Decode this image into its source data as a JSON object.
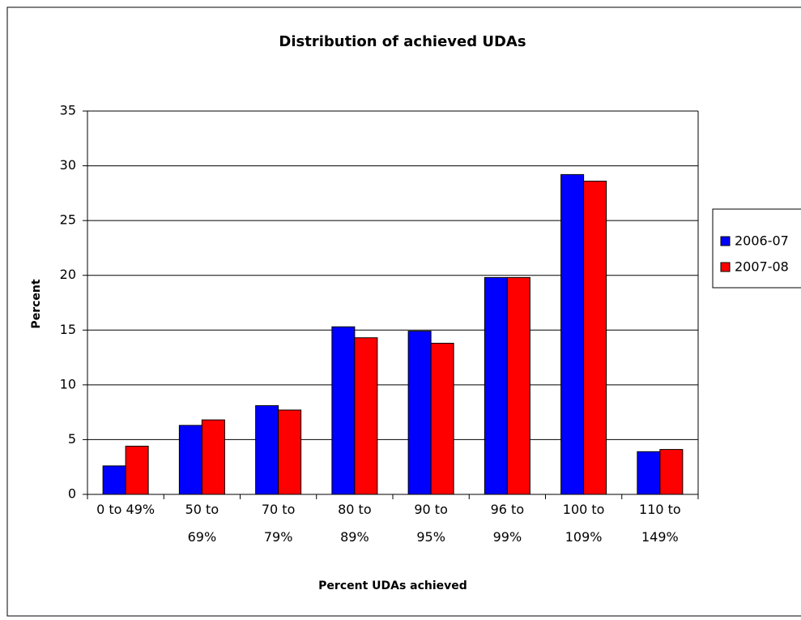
{
  "chart_data": {
    "type": "bar",
    "title": "Distribution of achieved UDAs",
    "xlabel": "Percent UDAs achieved",
    "ylabel": "Percent",
    "categories": [
      "0 to 49%",
      "50 to 69%",
      "70 to 79%",
      "80 to 89%",
      "90 to 95%",
      "96 to 99%",
      "100 to 109%",
      "110 to 149%"
    ],
    "series": [
      {
        "name": "2006-07",
        "color": "#0000ff",
        "values": [
          2.6,
          6.3,
          8.1,
          15.3,
          14.9,
          19.8,
          29.2,
          3.9
        ]
      },
      {
        "name": "2007-08",
        "color": "#ff0000",
        "values": [
          4.4,
          6.8,
          7.7,
          14.3,
          13.8,
          19.8,
          28.6,
          4.1
        ]
      }
    ],
    "ylim": [
      0,
      35
    ],
    "yticks": [
      0,
      5,
      10,
      15,
      20,
      25,
      30,
      35
    ],
    "grid": true,
    "legend": "right"
  }
}
